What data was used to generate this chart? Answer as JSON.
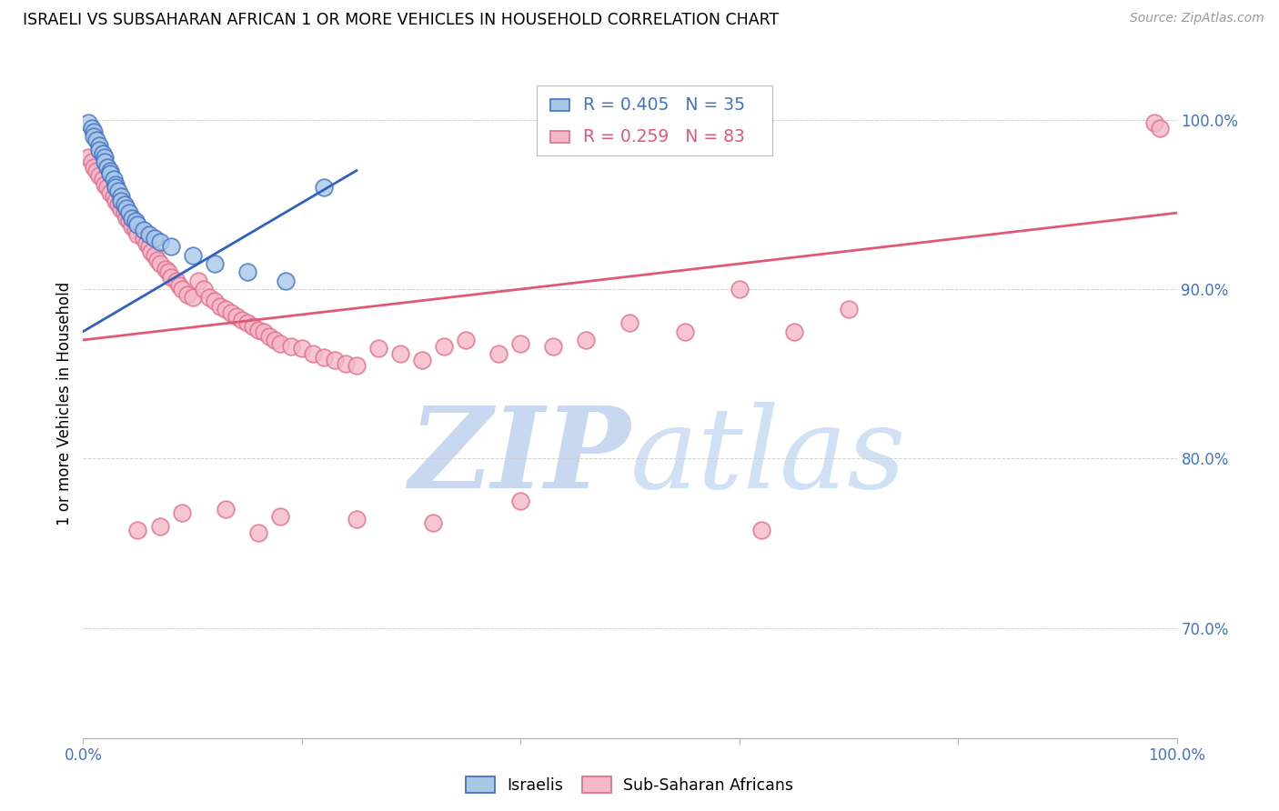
{
  "title": "ISRAELI VS SUBSAHARAN AFRICAN 1 OR MORE VEHICLES IN HOUSEHOLD CORRELATION CHART",
  "source": "Source: ZipAtlas.com",
  "ylabel": "1 or more Vehicles in Household",
  "xlim": [
    0.0,
    1.0
  ],
  "ylim": [
    0.635,
    1.03
  ],
  "yticks": [
    0.7,
    0.8,
    0.9,
    1.0
  ],
  "ytick_labels": [
    "70.0%",
    "80.0%",
    "90.0%",
    "100.0%"
  ],
  "xtick_vals": [
    0.0,
    0.2,
    0.4,
    0.6,
    0.8,
    1.0
  ],
  "xtick_labels": [
    "0.0%",
    "",
    "",
    "",
    "",
    "100.0%"
  ],
  "r_blue": 0.405,
  "n_blue": 35,
  "r_pink": 0.259,
  "n_pink": 83,
  "blue_fill": "#a8c8e8",
  "blue_edge": "#4472c4",
  "pink_fill": "#f5b8c8",
  "pink_edge": "#e07090",
  "blue_line_color": "#3060c0",
  "pink_line_color": "#e05878",
  "axis_color": "#4472c4",
  "grid_color": "#cccccc",
  "watermark_color": "#ddeeff",
  "blue_legend_color": "#4472c4",
  "pink_legend_color": "#e05878",
  "israelis_x": [
    0.005,
    0.008,
    0.01,
    0.01,
    0.012,
    0.015,
    0.015,
    0.018,
    0.02,
    0.02,
    0.022,
    0.025,
    0.025,
    0.028,
    0.03,
    0.03,
    0.032,
    0.035,
    0.035,
    0.038,
    0.04,
    0.042,
    0.045,
    0.048,
    0.05,
    0.055,
    0.06,
    0.065,
    0.07,
    0.08,
    0.1,
    0.12,
    0.15,
    0.185,
    0.22
  ],
  "israelis_y": [
    0.998,
    0.995,
    0.993,
    0.99,
    0.988,
    0.985,
    0.982,
    0.98,
    0.978,
    0.975,
    0.972,
    0.97,
    0.968,
    0.965,
    0.962,
    0.96,
    0.958,
    0.955,
    0.952,
    0.95,
    0.948,
    0.945,
    0.942,
    0.94,
    0.938,
    0.935,
    0.932,
    0.93,
    0.928,
    0.925,
    0.92,
    0.915,
    0.91,
    0.905,
    0.96
  ],
  "subsaharan_x": [
    0.005,
    0.008,
    0.01,
    0.012,
    0.015,
    0.018,
    0.02,
    0.022,
    0.025,
    0.028,
    0.03,
    0.032,
    0.035,
    0.038,
    0.04,
    0.042,
    0.045,
    0.048,
    0.05,
    0.055,
    0.058,
    0.06,
    0.062,
    0.065,
    0.068,
    0.07,
    0.075,
    0.078,
    0.08,
    0.085,
    0.088,
    0.09,
    0.095,
    0.1,
    0.105,
    0.11,
    0.115,
    0.12,
    0.125,
    0.13,
    0.135,
    0.14,
    0.145,
    0.15,
    0.155,
    0.16,
    0.165,
    0.17,
    0.175,
    0.18,
    0.19,
    0.2,
    0.21,
    0.22,
    0.23,
    0.24,
    0.25,
    0.27,
    0.29,
    0.31,
    0.33,
    0.35,
    0.38,
    0.4,
    0.43,
    0.46,
    0.5,
    0.55,
    0.6,
    0.65,
    0.7,
    0.98,
    0.985,
    0.13,
    0.09,
    0.18,
    0.25,
    0.32,
    0.07,
    0.05,
    0.16,
    0.4,
    0.62
  ],
  "subsaharan_y": [
    0.978,
    0.975,
    0.972,
    0.97,
    0.967,
    0.965,
    0.962,
    0.96,
    0.957,
    0.955,
    0.952,
    0.95,
    0.947,
    0.945,
    0.942,
    0.94,
    0.937,
    0.935,
    0.932,
    0.93,
    0.927,
    0.925,
    0.922,
    0.92,
    0.917,
    0.915,
    0.912,
    0.91,
    0.907,
    0.905,
    0.902,
    0.9,
    0.897,
    0.895,
    0.905,
    0.9,
    0.895,
    0.893,
    0.89,
    0.888,
    0.886,
    0.884,
    0.882,
    0.88,
    0.878,
    0.876,
    0.875,
    0.872,
    0.87,
    0.868,
    0.866,
    0.865,
    0.862,
    0.86,
    0.858,
    0.856,
    0.855,
    0.865,
    0.862,
    0.858,
    0.866,
    0.87,
    0.862,
    0.868,
    0.866,
    0.87,
    0.88,
    0.875,
    0.9,
    0.875,
    0.888,
    0.998,
    0.995,
    0.77,
    0.768,
    0.766,
    0.764,
    0.762,
    0.76,
    0.758,
    0.756,
    0.775,
    0.758
  ],
  "blue_trend_x0": 0.0,
  "blue_trend_y0": 0.875,
  "blue_trend_x1": 0.25,
  "blue_trend_y1": 0.97,
  "pink_trend_x0": 0.0,
  "pink_trend_y0": 0.87,
  "pink_trend_x1": 1.0,
  "pink_trend_y1": 0.945
}
